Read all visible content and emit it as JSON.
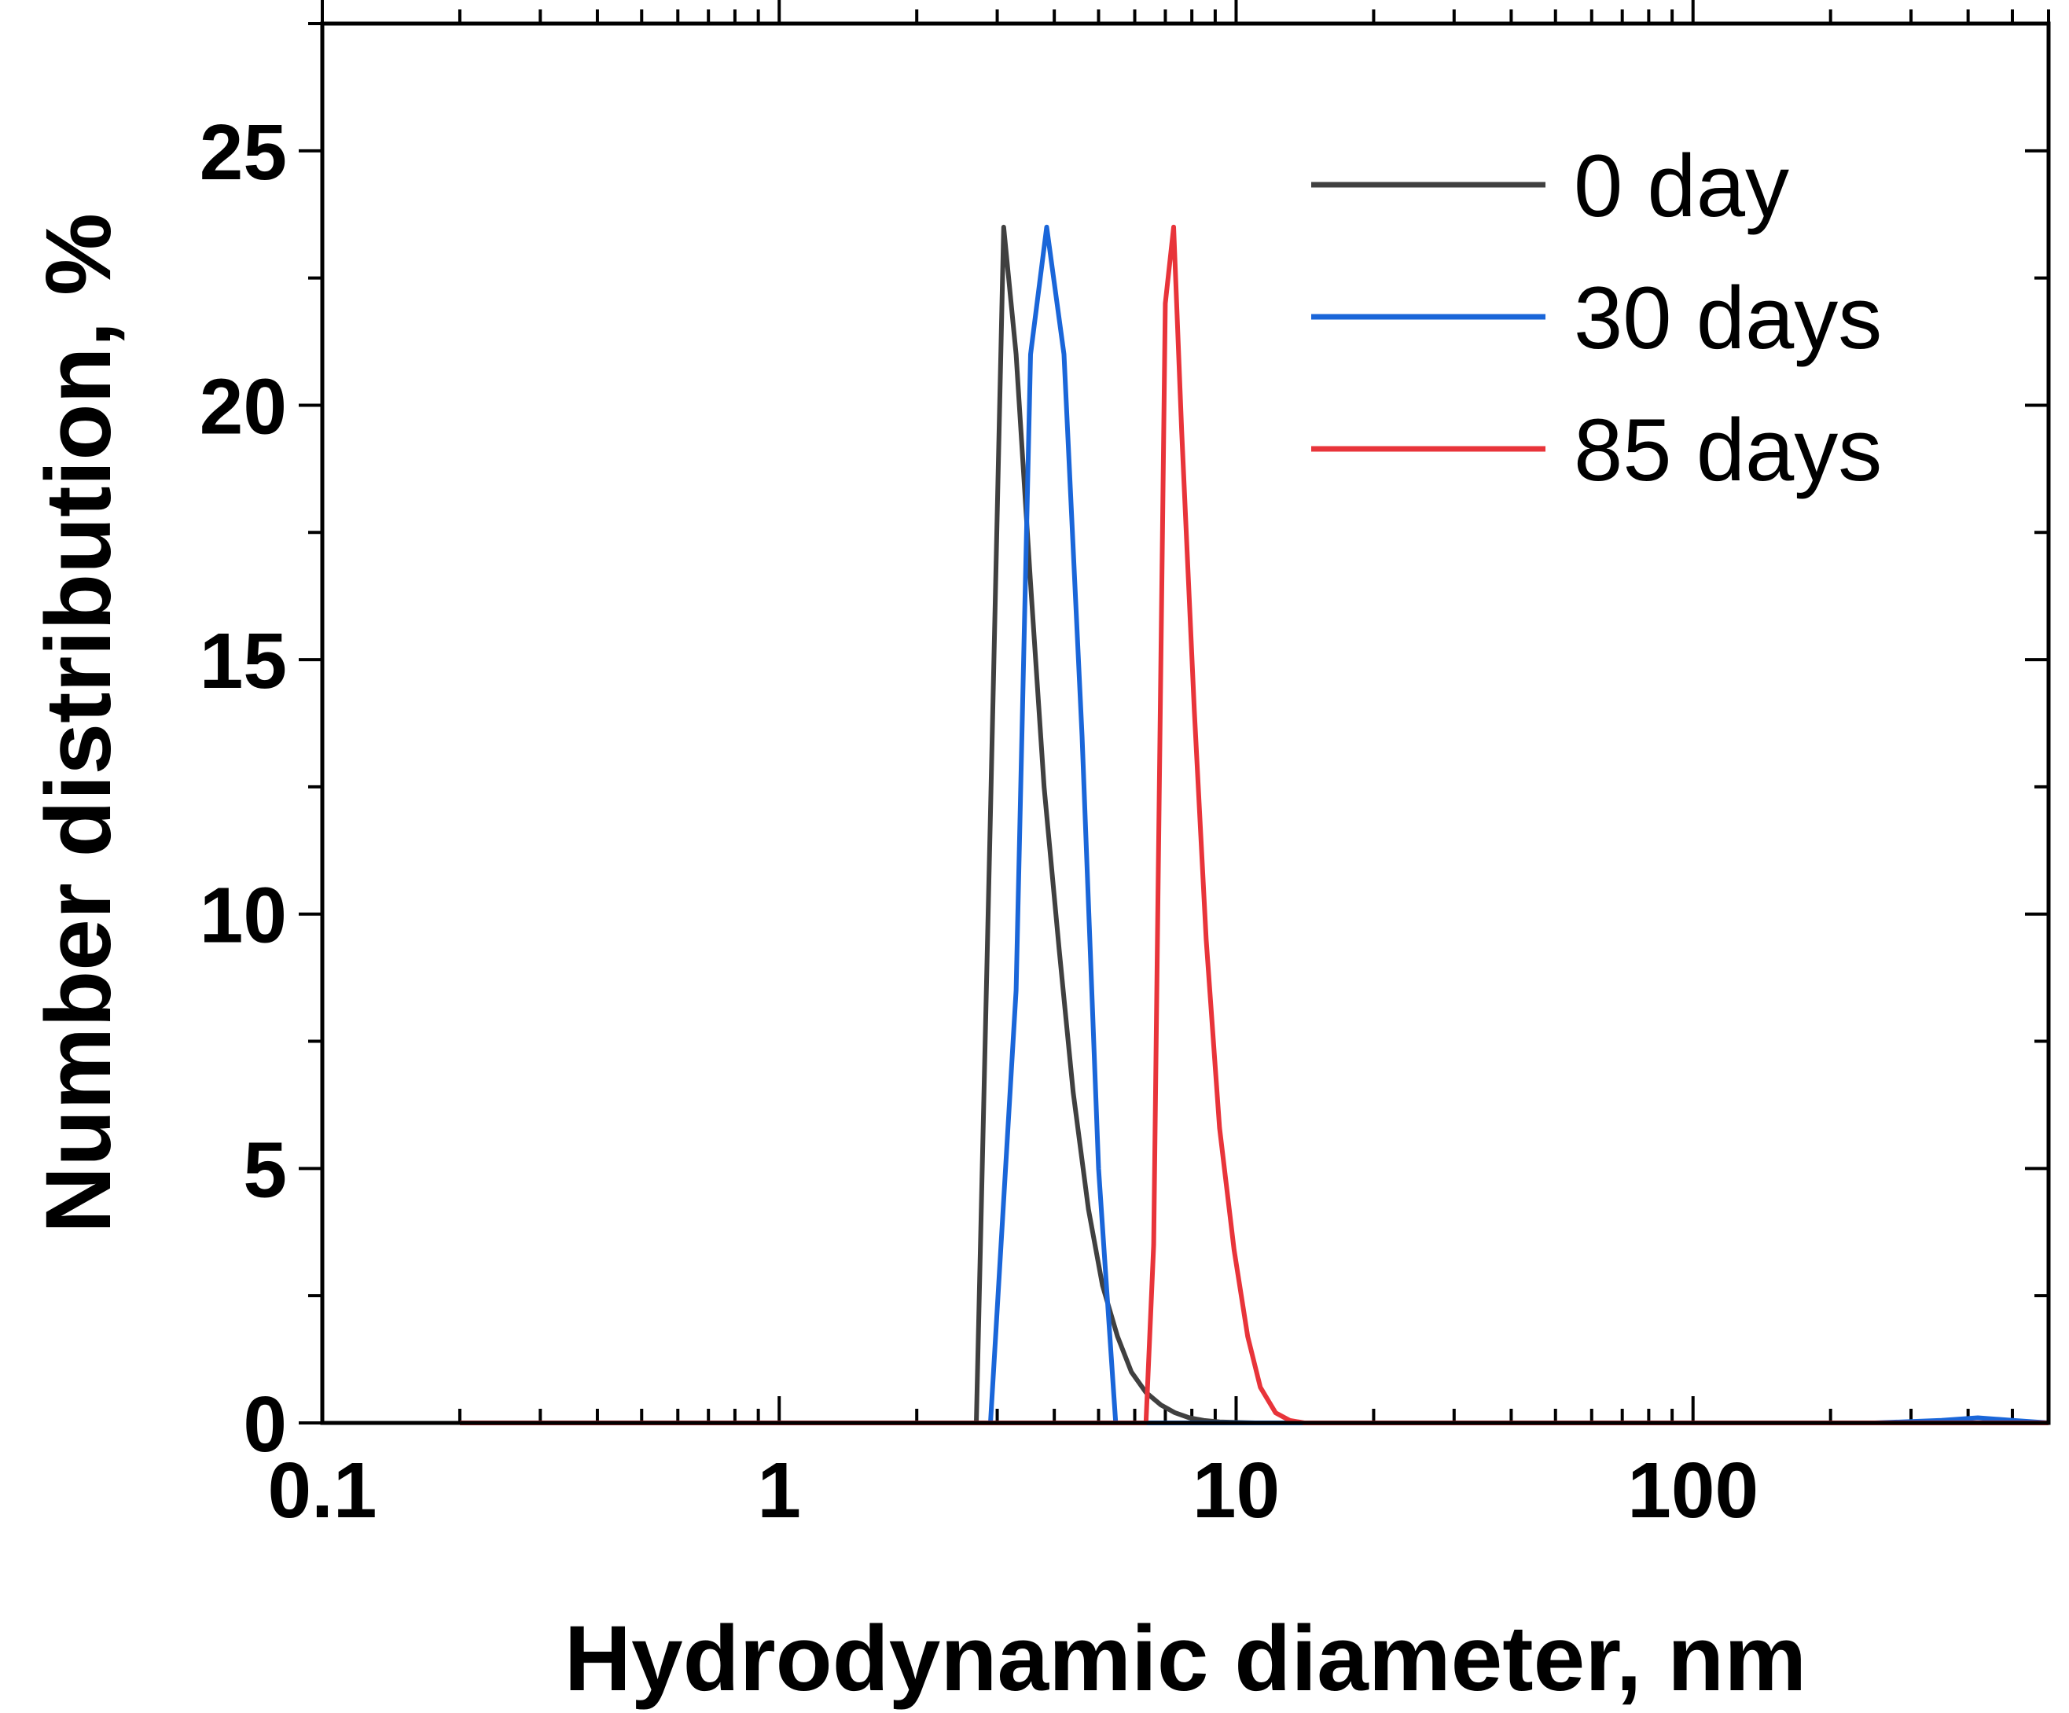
{
  "chart_data": {
    "type": "line",
    "title": "",
    "xlabel": "Hydrodynamic diameter, nm",
    "ylabel": "Number distribution, %",
    "xscale": "log",
    "xlim": [
      0.1,
      600
    ],
    "ylim": [
      0,
      27.5
    ],
    "x_ticks": [
      0.1,
      1,
      10,
      100
    ],
    "x_tick_labels": [
      "0.1",
      "1",
      "10",
      "100"
    ],
    "y_ticks": [
      0,
      5,
      10,
      15,
      20,
      25
    ],
    "y_tick_labels": [
      "0",
      "5",
      "10",
      "15",
      "20",
      "25"
    ],
    "grid": false,
    "legend_position": "top-right",
    "series": [
      {
        "name": "0 day",
        "color": "#404040",
        "x": [
          0.2,
          1.0,
          2.7,
          2.9,
          3.1,
          3.3,
          3.55,
          3.8,
          4.1,
          4.4,
          4.75,
          5.1,
          5.5,
          5.9,
          6.35,
          6.85,
          7.35,
          7.9,
          8.5,
          9.2,
          10.0,
          11.0,
          13.0,
          20,
          100,
          600
        ],
        "y": [
          0,
          0,
          0,
          12.0,
          23.5,
          21.0,
          16.5,
          12.5,
          9.3,
          6.5,
          4.2,
          2.7,
          1.7,
          1.0,
          0.6,
          0.35,
          0.2,
          0.1,
          0.05,
          0.02,
          0.01,
          0,
          0,
          0,
          0,
          0
        ]
      },
      {
        "name": "30 days",
        "color": "#1a66d9",
        "x": [
          0.2,
          1.0,
          2.9,
          3.3,
          3.55,
          3.85,
          4.2,
          4.6,
          5.0,
          5.45,
          6.0,
          10,
          100,
          250,
          350,
          420,
          500,
          600
        ],
        "y": [
          0,
          0,
          0,
          8.5,
          21.0,
          23.5,
          21.0,
          13.5,
          5.0,
          0,
          0,
          0,
          0,
          0,
          0.05,
          0.1,
          0.05,
          0
        ]
      },
      {
        "name": "85 days",
        "color": "#e8343a",
        "x": [
          0.2,
          1.0,
          6.0,
          6.35,
          6.6,
          7.0,
          7.3,
          7.6,
          8.1,
          8.6,
          9.2,
          9.9,
          10.6,
          11.3,
          12.2,
          13.1,
          14.1,
          15.0,
          20,
          100,
          600
        ],
        "y": [
          0,
          0,
          0,
          0,
          3.5,
          22.0,
          23.5,
          19.5,
          14.0,
          9.5,
          5.8,
          3.4,
          1.7,
          0.7,
          0.2,
          0.05,
          0,
          0,
          0,
          0,
          0
        ]
      }
    ]
  }
}
